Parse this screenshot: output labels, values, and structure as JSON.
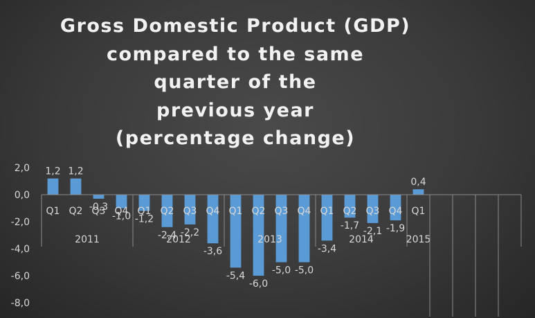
{
  "title_lines": [
    "Gross Domestic Product (GDP)",
    "compared to the same",
    "quarter of the",
    "previous year",
    "(percentage change)"
  ],
  "chart_data": {
    "type": "bar",
    "title": "Gross Domestic Product (GDP) compared to the same quarter of the previous year (percentage change)",
    "ylim": [
      -8,
      2
    ],
    "yticks": [
      "2,0",
      "0,0",
      "-2,0",
      "-4,0",
      "-6,0",
      "-8,0"
    ],
    "ytick_values": [
      2,
      0,
      -2,
      -4,
      -6,
      -8
    ],
    "categories": [
      "Q1",
      "Q2",
      "Q3",
      "Q4",
      "Q1",
      "Q2",
      "Q3",
      "Q4",
      "Q1",
      "Q2",
      "Q3",
      "Q4",
      "Q1",
      "Q2",
      "Q3",
      "Q4",
      "Q1",
      "",
      "",
      "",
      ""
    ],
    "groups": [
      {
        "label": "2011",
        "count": 4
      },
      {
        "label": "2012",
        "count": 4
      },
      {
        "label": "2013",
        "count": 4
      },
      {
        "label": "2014",
        "count": 4
      },
      {
        "label": "2015",
        "count": 5
      }
    ],
    "values": [
      1.2,
      1.2,
      -0.3,
      -1.0,
      -1.2,
      -2.4,
      -2.2,
      -3.6,
      -5.4,
      -6.0,
      -5.0,
      -5.0,
      -3.4,
      -1.7,
      -2.1,
      -1.9,
      0.4,
      null,
      null,
      null,
      null
    ],
    "value_labels": [
      "1,2",
      "1,2",
      "-0,3",
      "-1,0",
      "-1,2",
      "-2,4",
      "-2,2",
      "-3,6",
      "-5,4",
      "-6,0",
      "-5,0",
      "-5,0",
      "-3,4",
      "-1,7",
      "-2,1",
      "-1,9",
      "0,4",
      "",
      "",
      "",
      ""
    ],
    "bar_color": "#5b9bd5",
    "grid": false
  }
}
